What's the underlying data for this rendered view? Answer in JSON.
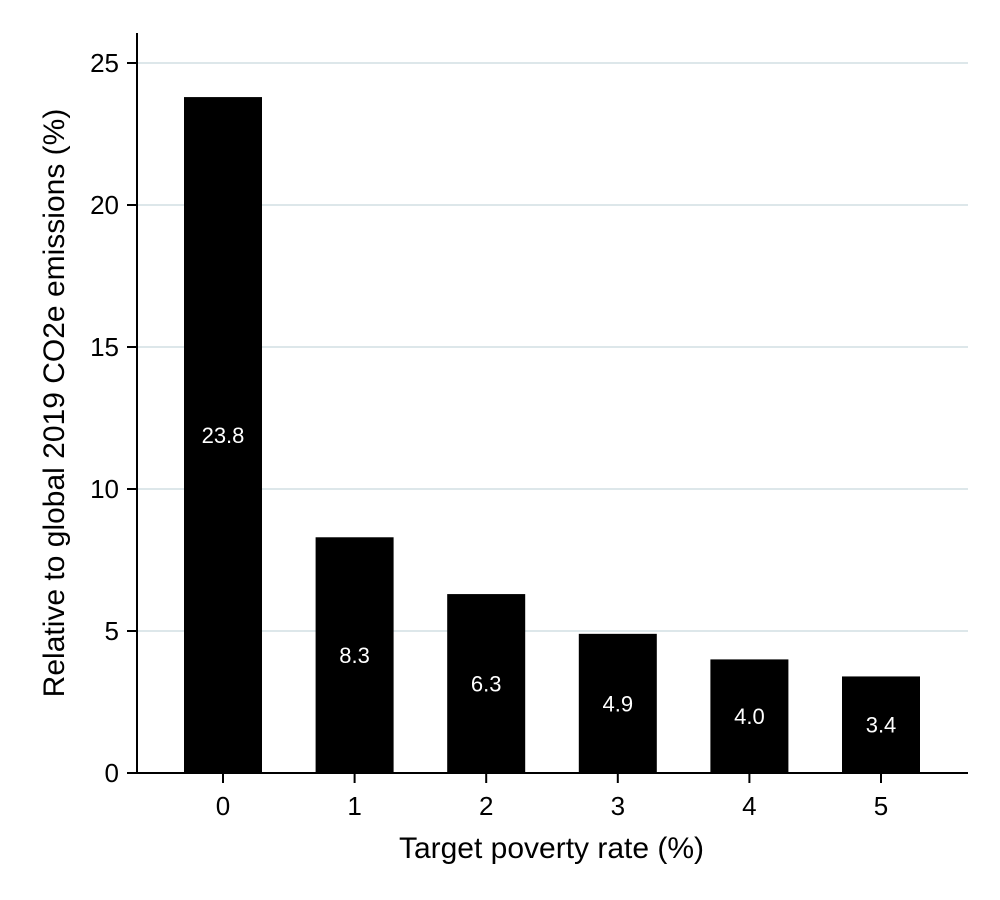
{
  "chart_data": {
    "type": "bar",
    "title": "",
    "xlabel": "Target poverty rate (%)",
    "ylabel": "Relative to global 2019 CO2e emissions (%)",
    "categories": [
      "0",
      "1",
      "2",
      "3",
      "4",
      "5"
    ],
    "values": [
      23.8,
      8.3,
      6.3,
      4.9,
      4.0,
      3.4
    ],
    "data_labels": [
      "23.8",
      "8.3",
      "6.3",
      "4.9",
      "4.0",
      "3.4"
    ],
    "yticks": [
      0,
      5,
      10,
      15,
      20,
      25
    ],
    "ylim": [
      0,
      26
    ],
    "grid": "horizontal",
    "legend": "none",
    "colors": {
      "bar": "#000000",
      "grid": "#dde7ea",
      "label": "#ffffff"
    }
  }
}
